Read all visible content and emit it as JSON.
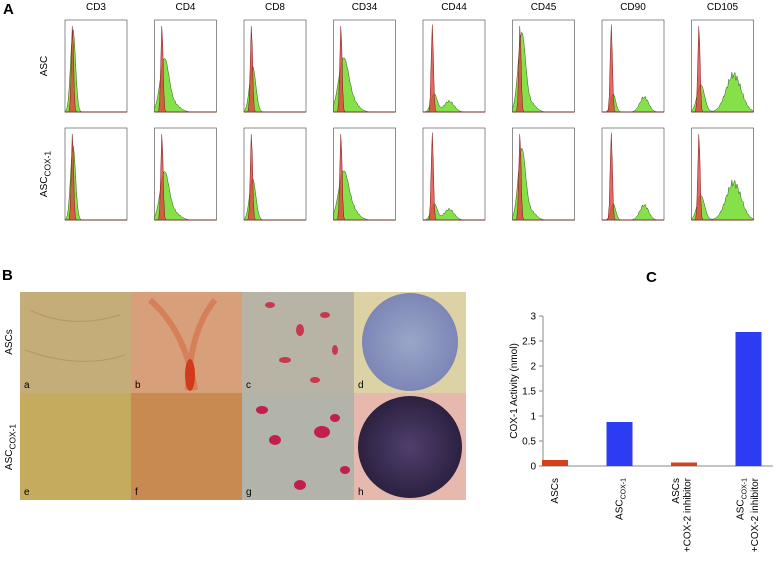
{
  "panel_a": {
    "label": "A",
    "columns": [
      "CD3",
      "CD4",
      "CD8",
      "CD34",
      "CD44",
      "CD45",
      "CD90",
      "CD105"
    ],
    "rows": [
      {
        "name": "ASC"
      },
      {
        "name": "ASC",
        "sub": "COX-1"
      }
    ]
  },
  "panel_b": {
    "label": "B",
    "rows": [
      {
        "name": "ASCs"
      },
      {
        "name": "ASC",
        "sub": "COX-1"
      }
    ],
    "images": [
      "a",
      "b",
      "c",
      "d",
      "e",
      "f",
      "g",
      "h"
    ]
  },
  "chart_data": {
    "type": "bar",
    "panel_label": "C",
    "y_label": "COX-1 Activity (nmol)",
    "categories": [
      {
        "name": "ASCs"
      },
      {
        "name": "ASC",
        "sub": "COX-1"
      },
      {
        "name": "ASCs",
        "note": "+COX-2 inhibitor"
      },
      {
        "name": "ASC",
        "sub": "COX-1",
        "note": "+COX-2 inhibitor"
      }
    ],
    "values": [
      0.12,
      0.88,
      0.07,
      2.68
    ],
    "colors": [
      "#d6401c",
      "#2c3cf2",
      "#d6401c",
      "#2c3cf2"
    ],
    "ylim": [
      0,
      3
    ],
    "yticks": [
      0,
      0.5,
      1,
      1.5,
      2,
      2.5,
      3
    ]
  }
}
